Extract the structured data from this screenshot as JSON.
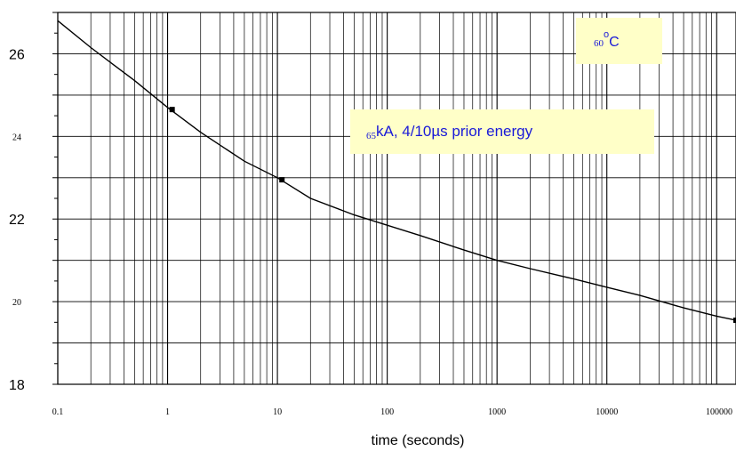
{
  "chart_data": {
    "type": "line",
    "xscale": "log",
    "xlim": [
      0.1,
      150000
    ],
    "ylim": [
      18,
      27
    ],
    "grid": true,
    "xlabel": "time (seconds)",
    "ylabel": "",
    "x_ticks": [
      {
        "value": 0.1,
        "label": "0.1"
      },
      {
        "value": 1,
        "label": "1"
      },
      {
        "value": 10,
        "label": "10"
      },
      {
        "value": 100,
        "label": "100"
      },
      {
        "value": 1000,
        "label": "1000"
      },
      {
        "value": 10000,
        "label": "10000"
      },
      {
        "value": 100000,
        "label": "100000"
      }
    ],
    "y_ticks": [
      {
        "value": 26,
        "label": "26",
        "size": "large"
      },
      {
        "value": 24,
        "label": "24",
        "size": "small"
      },
      {
        "value": 22,
        "label": "22",
        "size": "large"
      },
      {
        "value": 20,
        "label": "20",
        "size": "small"
      },
      {
        "value": 18,
        "label": "18",
        "size": "large"
      }
    ],
    "series": [
      {
        "x": [
          0.1,
          0.2,
          0.5,
          1,
          2,
          5,
          10,
          20,
          50,
          100,
          200,
          500,
          1000,
          2000,
          5000,
          10000,
          20000,
          50000,
          100000,
          150000
        ],
        "y": [
          26.8,
          26.15,
          25.35,
          24.7,
          24.1,
          23.4,
          23.0,
          22.5,
          22.1,
          21.85,
          21.6,
          21.25,
          21.0,
          20.8,
          20.55,
          20.35,
          20.15,
          19.85,
          19.65,
          19.55
        ]
      }
    ],
    "markers": [
      {
        "x": 1.1,
        "y": 24.65
      },
      {
        "x": 11,
        "y": 22.95
      },
      {
        "x": 150000,
        "y": 19.55
      }
    ],
    "annotations": [
      {
        "id": "temp",
        "sub": "60",
        "sup": "o",
        "text": "C",
        "bg": "#ffffc8",
        "color": "#1a1ad8"
      },
      {
        "id": "energy",
        "sub": "65",
        "text": "kA, 4/10µs prior energy",
        "bg": "#ffffc8",
        "color": "#1a1ad8"
      }
    ],
    "colors": {
      "line": "#000000",
      "grid": "#000000",
      "annotation_bg": "#ffffc8",
      "annotation_text": "#1a1ad8"
    }
  }
}
